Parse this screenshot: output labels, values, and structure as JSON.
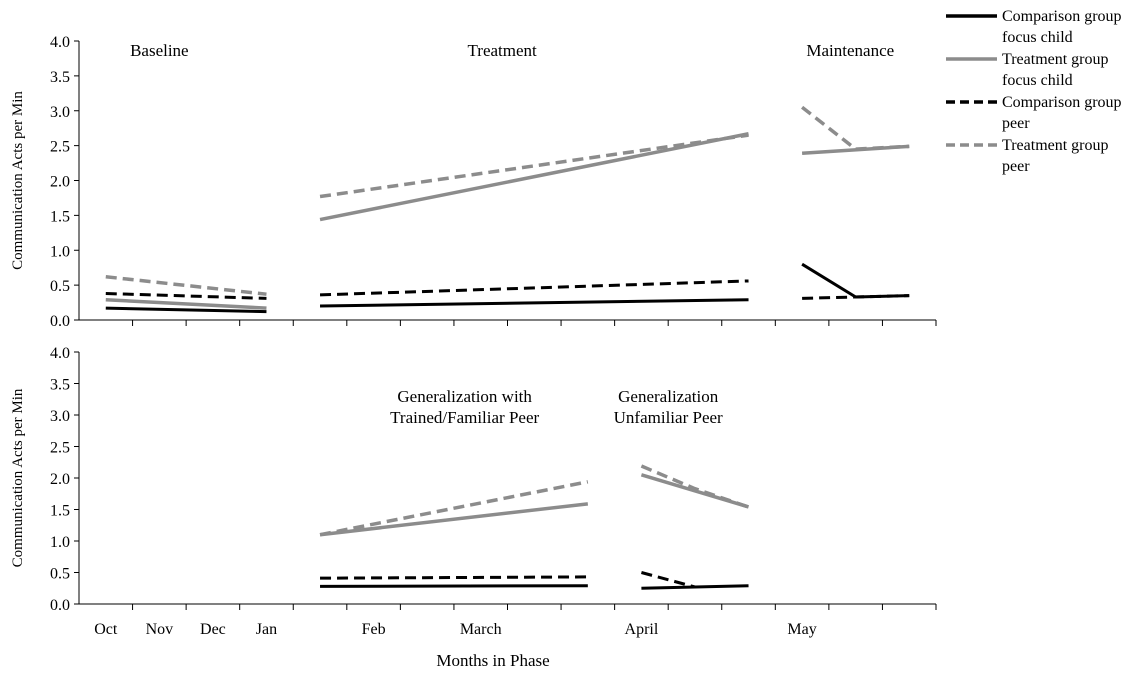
{
  "chart_data": {
    "type": "line",
    "xlabel": "Months in Phase",
    "x_tick_labels": [
      "Oct",
      "Nov",
      "Dec",
      "Jan",
      "Feb",
      "March",
      "April",
      "May"
    ],
    "legend": {
      "placement": "top-right",
      "entries": [
        {
          "series": "comparison_focus",
          "line1": "Comparison group",
          "line2": "focus child"
        },
        {
          "series": "treatment_focus",
          "line1": "Treatment group",
          "line2": "focus child"
        },
        {
          "series": "comparison_peer",
          "line1": "Comparison group",
          "line2": "peer"
        },
        {
          "series": "treatment_peer",
          "line1": "Treatment group",
          "line2": "peer"
        }
      ]
    },
    "series_styles": {
      "comparison_focus": {
        "color": "#000000",
        "dashed": false
      },
      "treatment_focus": {
        "color": "#8c8c8c",
        "dashed": false
      },
      "comparison_peer": {
        "color": "#000000",
        "dashed": true
      },
      "treatment_peer": {
        "color": "#8c8c8c",
        "dashed": true
      }
    },
    "panels": [
      {
        "ylabel": "Communication Acts per Min",
        "ylim": [
          0,
          4.0
        ],
        "yticks": [
          "0.0",
          "0.5",
          "1.0",
          "1.5",
          "2.0",
          "2.5",
          "3.0",
          "3.5",
          "4.0"
        ],
        "phase_labels": [
          {
            "lines": [
              "Baseline"
            ],
            "x": 1.5
          },
          {
            "lines": [
              "Treatment"
            ],
            "x": 7.9
          },
          {
            "lines": [
              "Maintenance"
            ],
            "x": 14.4
          }
        ],
        "segments": [
          {
            "series": "treatment_peer",
            "x": [
              0.5,
              3.5
            ],
            "y": [
              0.62,
              0.37
            ]
          },
          {
            "series": "comparison_peer",
            "x": [
              0.5,
              3.5
            ],
            "y": [
              0.38,
              0.31
            ]
          },
          {
            "series": "treatment_focus",
            "x": [
              0.5,
              3.5
            ],
            "y": [
              0.29,
              0.17
            ]
          },
          {
            "series": "comparison_focus",
            "x": [
              0.5,
              3.5
            ],
            "y": [
              0.17,
              0.12
            ]
          },
          {
            "series": "treatment_peer",
            "x": [
              4.5,
              12.5
            ],
            "y": [
              1.77,
              2.65
            ]
          },
          {
            "series": "treatment_focus",
            "x": [
              4.5,
              12.5
            ],
            "y": [
              1.44,
              2.67
            ]
          },
          {
            "series": "comparison_peer",
            "x": [
              4.5,
              12.5
            ],
            "y": [
              0.36,
              0.56
            ]
          },
          {
            "series": "comparison_focus",
            "x": [
              4.5,
              12.5
            ],
            "y": [
              0.2,
              0.29
            ]
          },
          {
            "series": "treatment_peer",
            "x": [
              13.5,
              14.5,
              15.5
            ],
            "y": [
              3.05,
              2.45,
              2.49
            ]
          },
          {
            "series": "treatment_focus",
            "x": [
              13.5,
              15.5
            ],
            "y": [
              2.39,
              2.49
            ]
          },
          {
            "series": "comparison_focus",
            "x": [
              13.5,
              14.5,
              15.5
            ],
            "y": [
              0.8,
              0.33,
              0.35
            ]
          },
          {
            "series": "comparison_peer",
            "x": [
              13.5,
              15.5
            ],
            "y": [
              0.31,
              0.35
            ]
          }
        ]
      },
      {
        "ylabel": "Communication Acts per Min",
        "ylim": [
          0,
          4.0
        ],
        "yticks": [
          "0.0",
          "0.5",
          "1.0",
          "1.5",
          "2.0",
          "2.5",
          "3.0",
          "3.5",
          "4.0"
        ],
        "phase_labels": [
          {
            "lines": [
              "Generalization with",
              "Trained/Familiar Peer"
            ],
            "x": 7.2
          },
          {
            "lines": [
              "Generalization",
              "Unfamiliar Peer"
            ],
            "x": 11.0
          }
        ],
        "segments": [
          {
            "series": "treatment_peer",
            "x": [
              4.5,
              9.5
            ],
            "y": [
              1.1,
              1.94
            ]
          },
          {
            "series": "treatment_focus",
            "x": [
              4.5,
              9.5
            ],
            "y": [
              1.1,
              1.59
            ]
          },
          {
            "series": "comparison_peer",
            "x": [
              4.5,
              9.5
            ],
            "y": [
              0.41,
              0.43
            ]
          },
          {
            "series": "comparison_focus",
            "x": [
              4.5,
              9.5
            ],
            "y": [
              0.28,
              0.29
            ]
          },
          {
            "series": "treatment_peer",
            "x": [
              10.5,
              11.5,
              12.5
            ],
            "y": [
              2.19,
              1.83,
              1.54
            ]
          },
          {
            "series": "treatment_focus",
            "x": [
              10.5,
              12.5
            ],
            "y": [
              2.05,
              1.54
            ]
          },
          {
            "series": "comparison_peer",
            "x": [
              10.5,
              11.5
            ],
            "y": [
              0.5,
              0.27
            ]
          },
          {
            "series": "comparison_focus",
            "x": [
              10.5,
              12.5
            ],
            "y": [
              0.25,
              0.29
            ]
          }
        ]
      }
    ]
  }
}
